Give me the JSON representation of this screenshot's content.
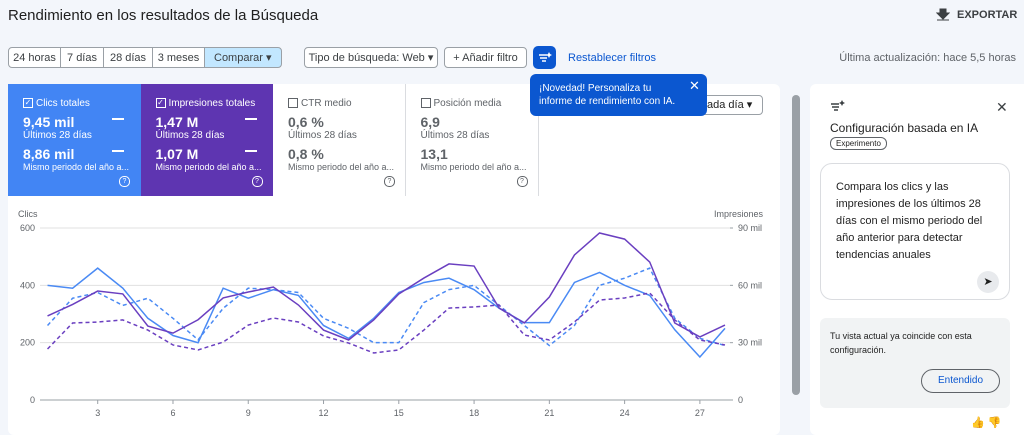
{
  "header": {
    "title": "Rendimiento en los resultados de la Búsqueda",
    "export": "EXPORTAR"
  },
  "toolbar": {
    "date_ranges": [
      "24 horas",
      "7 días",
      "28 días",
      "3 meses"
    ],
    "compare": "Comparar",
    "search_type": "Tipo de búsqueda: Web",
    "add_filter": "Añadir filtro",
    "reset_filters": "Restablecer filtros",
    "last_update": "Última actualización: hace 5,5 horas"
  },
  "metrics": [
    {
      "label": "Clics totales",
      "value": "9,45 mil",
      "period": "Últimos 28 días",
      "compare_value": "8,86 mil",
      "compare_period": "Mismo periodo del año a..."
    },
    {
      "label": "Impresiones totales",
      "value": "1,47 M",
      "period": "Últimos 28 días",
      "compare_value": "1,07 M",
      "compare_period": "Mismo periodo del año a..."
    },
    {
      "label": "CTR medio",
      "value": "0,6 %",
      "period": "Últimos 28 días",
      "compare_value": "0,8 %",
      "compare_period": "Mismo periodo del año a..."
    },
    {
      "label": "Posición media",
      "value": "6,9",
      "period": "Últimos 28 días",
      "compare_value": "13,1",
      "compare_period": "Mismo periodo del año a..."
    }
  ],
  "tooltip": {
    "text": "¡Novedad! Personaliza tu informe de rendimiento con IA."
  },
  "dropdown": "ada día",
  "chart_data": {
    "type": "line",
    "y_label": "Clics",
    "y2_label": "Impresiones",
    "x": [
      1,
      2,
      3,
      4,
      5,
      6,
      7,
      8,
      9,
      10,
      11,
      12,
      13,
      14,
      15,
      16,
      17,
      18,
      19,
      20,
      21,
      22,
      23,
      24,
      25,
      26,
      27,
      28
    ],
    "xlim": [
      0.7,
      28.2
    ],
    "xticks": [
      3,
      6,
      9,
      12,
      15,
      18,
      21,
      24,
      27
    ],
    "ylim": [
      0,
      600
    ],
    "yticks": [
      0,
      200,
      400,
      600
    ],
    "y2lim": [
      0,
      90000
    ],
    "y2ticks": [
      0,
      {
        "value": 30000,
        "label": "30 mil"
      },
      {
        "value": 60000,
        "label": "60 mil"
      },
      {
        "value": 90000,
        "label": "90 mil"
      }
    ],
    "grid": true,
    "series": [
      {
        "color": "#4a8af4",
        "dash": false,
        "values": [
          400,
          390,
          460,
          390,
          285,
          225,
          200,
          390,
          355,
          385,
          365,
          260,
          215,
          285,
          375,
          410,
          425,
          385,
          320,
          270,
          270,
          410,
          445,
          400,
          365,
          245,
          150,
          250
        ]
      },
      {
        "color": "#4a8af4",
        "dash": true,
        "values": [
          260,
          355,
          375,
          330,
          355,
          285,
          210,
          320,
          390,
          385,
          375,
          285,
          250,
          200,
          200,
          340,
          385,
          400,
          330,
          260,
          190,
          260,
          400,
          425,
          460,
          285,
          215,
          190
        ]
      },
      {
        "color": "#6a3fc0",
        "dash": false,
        "axis": "y2",
        "values": [
          44000,
          50000,
          57000,
          55500,
          38700,
          35000,
          42000,
          53400,
          56500,
          59100,
          49700,
          36600,
          31400,
          41900,
          55500,
          63800,
          71200,
          70100,
          48100,
          40300,
          53900,
          75900,
          87400,
          84200,
          72200,
          40300,
          33000,
          39200
        ]
      },
      {
        "color": "#6a3fc0",
        "dash": true,
        "axis": "y2",
        "values": [
          26700,
          40300,
          40800,
          41900,
          36600,
          28800,
          26200,
          30300,
          39200,
          42900,
          40800,
          33500,
          29800,
          24600,
          26200,
          36600,
          48100,
          48700,
          49700,
          34000,
          31400,
          40800,
          52300,
          53400,
          56000,
          41900,
          31400,
          28800
        ]
      }
    ]
  },
  "ai_panel": {
    "title": "Configuración basada en IA",
    "badge": "Experimento",
    "prompt": "Compara los clics y las impresiones de los últimos 28 días con el mismo periodo del año anterior para detectar tendencias anuales",
    "notice": "Tu vista actual ya coincide con esta configuración.",
    "button": "Entendido"
  }
}
